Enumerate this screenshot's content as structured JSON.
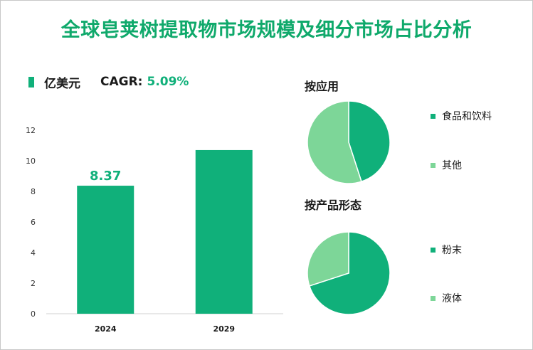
{
  "title": "全球皂荚树提取物市场规模及细分市场占比分析",
  "legend": {
    "unit_label": "亿美元",
    "cagr_label": "CAGR:",
    "cagr_value": "5.09%"
  },
  "colors": {
    "primary": "#10b07a",
    "secondary": "#7dd698",
    "title": "#0fa96b"
  },
  "chart_data": [
    {
      "type": "bar",
      "categories": [
        "2024",
        "2029"
      ],
      "values": [
        8.37,
        10.7
      ],
      "data_labels": [
        "8.37",
        ""
      ],
      "ylim": [
        0,
        12
      ],
      "yticks": [
        0,
        2,
        4,
        6,
        8,
        10,
        12
      ],
      "grid": false,
      "legend": "top-left"
    },
    {
      "type": "pie",
      "title": "按应用",
      "labels": [
        "食品和饮料",
        "其他"
      ],
      "values": [
        45,
        55
      ],
      "colors": [
        "#10b07a",
        "#7dd698"
      ],
      "legend": "right"
    },
    {
      "type": "pie",
      "title": "按产品形态",
      "labels": [
        "粉末",
        "液体"
      ],
      "values": [
        70,
        30
      ],
      "colors": [
        "#10b07a",
        "#7dd698"
      ],
      "legend": "right"
    }
  ]
}
